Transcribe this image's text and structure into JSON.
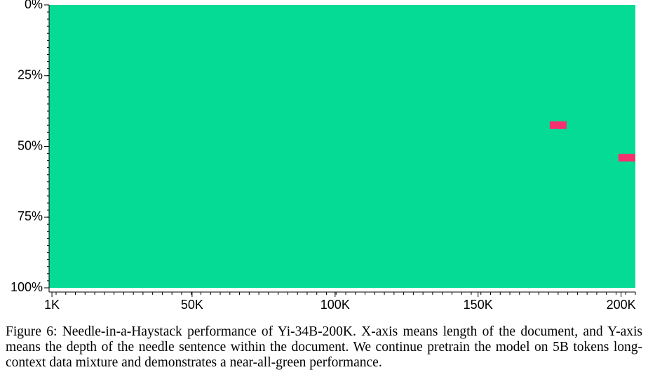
{
  "chart_data": {
    "type": "heatmap",
    "caption": "Figure 6: Needle-in-a-Haystack performance of Yi-34B-200K. X-axis means length of the document, and Y-axis means the depth of the needle sentence within the document. We continue pretrain the model on 5B tokens long-context data mixture and demonstrates a near-all-green performance.",
    "background_color": "#05db95",
    "xlim": [
      0,
      205000
    ],
    "xticks": [
      {
        "value": 1000,
        "label": "1K"
      },
      {
        "value": 50000,
        "label": "50K"
      },
      {
        "value": 100000,
        "label": "100K"
      },
      {
        "value": 150000,
        "label": "150K"
      },
      {
        "value": 200000,
        "label": "200K"
      }
    ],
    "ylim": [
      0,
      100
    ],
    "yticks": [
      {
        "value": 0,
        "label": "0%"
      },
      {
        "value": 25,
        "label": "25%"
      },
      {
        "value": 50,
        "label": "50%"
      },
      {
        "value": 75,
        "label": "75%"
      },
      {
        "value": 100,
        "label": "100%"
      }
    ],
    "failures": {
      "color": "#f5326e",
      "x": [
        178000,
        202000
      ],
      "y": [
        42.5,
        54
      ]
    }
  }
}
